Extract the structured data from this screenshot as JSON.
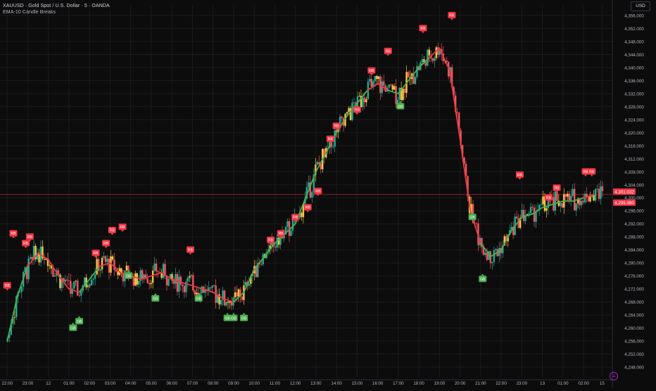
{
  "header": {
    "title": "XAUUSD · Gold Spot / U.S. Dollar · 5 · OANDA",
    "indicator": "EMA-10 Candle Breaks"
  },
  "currency_button": "USD",
  "badge_labels": {
    "red": "RB",
    "green": "GB"
  },
  "colors": {
    "background": "#0c0c0c",
    "grid": "#1b1b1b",
    "candle_up": "#22ab94",
    "candle_down": "#f7525f",
    "candle_alt": "#f5c542",
    "ema_up": "#4caf50",
    "ema_down": "#e63946",
    "red_badge": "#f23645",
    "green_badge": "#4caf50",
    "price_line": "#c1272d"
  },
  "chart_data": {
    "type": "candlestick",
    "symbol": "XAUUSD",
    "timeframe": "5",
    "y_ticks": [
      4248,
      4252,
      4256,
      4260,
      4264,
      4268,
      4272,
      4276,
      4280,
      4284,
      4288,
      4292,
      4296,
      4300,
      4304,
      4308,
      4312,
      4316,
      4320,
      4324,
      4328,
      4332,
      4336,
      4340,
      4344,
      4348,
      4352,
      4356
    ],
    "y_tick_labels": [
      "4,248.000",
      "4,252.000",
      "4,256.000",
      "4,260.000",
      "4,264.000",
      "4,268.000",
      "4,272.000",
      "4,276.000",
      "4,280.000",
      "4,284.000",
      "4,288.000",
      "4,292.000",
      "4,296.000",
      "4,300.000",
      "4,304.000",
      "4,308.000",
      "4,312.000",
      "4,316.000",
      "4,320.000",
      "4,324.000",
      "4,328.000",
      "4,332.000",
      "4,336.000",
      "4,340.000",
      "4,344.000",
      "4,348.000",
      "4,352.000",
      "4,356.000"
    ],
    "ylim": [
      4245,
      4359
    ],
    "x_tick_labels": [
      "22:00",
      "23:00",
      "12",
      "01:00",
      "02:00",
      "03:00",
      "04:00",
      "05:00",
      "06:00",
      "07:00",
      "08:00",
      "09:00",
      "10:00",
      "11:00",
      "12:00",
      "13:00",
      "14:00",
      "15:00",
      "16:00",
      "17:00",
      "18:00",
      "19:00",
      "20:00",
      "21:00",
      "22:00",
      "23:00",
      "13",
      "01:00",
      "02:00",
      "15"
    ],
    "x_ticks": [
      0,
      1,
      2,
      3,
      4,
      5,
      6,
      7,
      8,
      9,
      10,
      11,
      12,
      13,
      14,
      15,
      16,
      17,
      18,
      19,
      20,
      21,
      22,
      23,
      24,
      25,
      26,
      27,
      28,
      28.9
    ],
    "x_range": [
      -0.35,
      29.4
    ],
    "price_labels": [
      {
        "value": 4301.032,
        "text": "4,301.032"
      },
      {
        "value": 4299.38,
        "text": "4,299.380"
      }
    ],
    "ema_series": {
      "name": "EMA-10",
      "x": [
        0,
        0.5,
        1,
        1.5,
        2,
        2.5,
        3,
        3.5,
        4,
        4.5,
        5,
        5.5,
        6,
        6.5,
        7,
        7.5,
        8,
        8.5,
        9,
        9.5,
        10,
        10.5,
        11,
        11.5,
        12,
        12.5,
        13,
        13.5,
        14,
        14.5,
        15,
        15.5,
        16,
        16.5,
        17,
        17.5,
        18,
        18.5,
        19,
        19.5,
        20,
        20.5,
        21,
        21.5,
        22,
        22.5,
        23,
        23.5,
        24,
        24.5,
        25,
        25.5,
        26,
        26.5,
        27,
        27.5,
        28,
        28.5
      ],
      "y": [
        4256,
        4270,
        4279,
        4283,
        4281,
        4276,
        4272,
        4271,
        4275,
        4279,
        4280,
        4277,
        4276,
        4275,
        4276,
        4277,
        4275,
        4274,
        4273,
        4272,
        4271,
        4269,
        4268,
        4271,
        4278,
        4282,
        4286,
        4289,
        4292,
        4300,
        4308,
        4314,
        4320,
        4325,
        4329,
        4333,
        4335,
        4333,
        4332,
        4336,
        4340,
        4343,
        4346,
        4339,
        4318,
        4296,
        4286,
        4282,
        4284,
        4290,
        4294,
        4295,
        4297,
        4298,
        4299,
        4299,
        4300,
        4301
      ],
      "color": [
        1,
        1,
        1,
        0,
        0,
        0,
        0,
        0,
        1,
        1,
        0,
        0,
        0,
        0,
        0,
        0,
        0,
        0,
        0,
        0,
        0,
        0,
        0,
        1,
        1,
        1,
        1,
        1,
        1,
        1,
        1,
        1,
        1,
        1,
        1,
        1,
        0,
        0,
        1,
        1,
        1,
        1,
        0,
        0,
        0,
        0,
        0,
        1,
        1,
        1,
        1,
        1,
        1,
        1,
        1,
        1,
        1,
        0
      ]
    },
    "badges": [
      {
        "t": "RB",
        "x": 0.0,
        "p": 4273
      },
      {
        "t": "RB",
        "x": 0.3,
        "p": 4289
      },
      {
        "t": "RB",
        "x": 0.9,
        "p": 4286
      },
      {
        "t": "RB",
        "x": 1.1,
        "p": 4288
      },
      {
        "t": "GB",
        "x": 3.2,
        "p": 4260
      },
      {
        "t": "GB",
        "x": 3.5,
        "p": 4262
      },
      {
        "t": "RB",
        "x": 4.3,
        "p": 4283
      },
      {
        "t": "RB",
        "x": 4.8,
        "p": 4286
      },
      {
        "t": "RB",
        "x": 5.1,
        "p": 4290
      },
      {
        "t": "RB",
        "x": 5.6,
        "p": 4291
      },
      {
        "t": "GB",
        "x": 5.9,
        "p": 4276
      },
      {
        "t": "GB",
        "x": 7.2,
        "p": 4269
      },
      {
        "t": "RB",
        "x": 8.9,
        "p": 4284
      },
      {
        "t": "GB",
        "x": 9.3,
        "p": 4269
      },
      {
        "t": "GB",
        "x": 10.7,
        "p": 4263
      },
      {
        "t": "GB",
        "x": 11.0,
        "p": 4263
      },
      {
        "t": "GB",
        "x": 11.5,
        "p": 4263
      },
      {
        "t": "RB",
        "x": 12.8,
        "p": 4287
      },
      {
        "t": "RB",
        "x": 13.3,
        "p": 4289
      },
      {
        "t": "RB",
        "x": 14.0,
        "p": 4294
      },
      {
        "t": "RB",
        "x": 14.6,
        "p": 4297
      },
      {
        "t": "RB",
        "x": 15.1,
        "p": 4302
      },
      {
        "t": "RB",
        "x": 15.7,
        "p": 4318
      },
      {
        "t": "RB",
        "x": 16.0,
        "p": 4322
      },
      {
        "t": "RB",
        "x": 17.0,
        "p": 4327
      },
      {
        "t": "RB",
        "x": 17.7,
        "p": 4339
      },
      {
        "t": "RB",
        "x": 18.5,
        "p": 4345
      },
      {
        "t": "GB",
        "x": 19.1,
        "p": 4328
      },
      {
        "t": "RB",
        "x": 20.2,
        "p": 4352
      },
      {
        "t": "RB",
        "x": 21.6,
        "p": 4356
      },
      {
        "t": "GB",
        "x": 22.6,
        "p": 4294
      },
      {
        "t": "GB",
        "x": 23.1,
        "p": 4275
      },
      {
        "t": "RB",
        "x": 24.9,
        "p": 4307
      },
      {
        "t": "RB",
        "x": 26.3,
        "p": 4300
      },
      {
        "t": "RB",
        "x": 26.7,
        "p": 4303
      },
      {
        "t": "RB",
        "x": 28.1,
        "p": 4308
      },
      {
        "t": "RB",
        "x": 28.4,
        "p": 4308
      }
    ]
  }
}
